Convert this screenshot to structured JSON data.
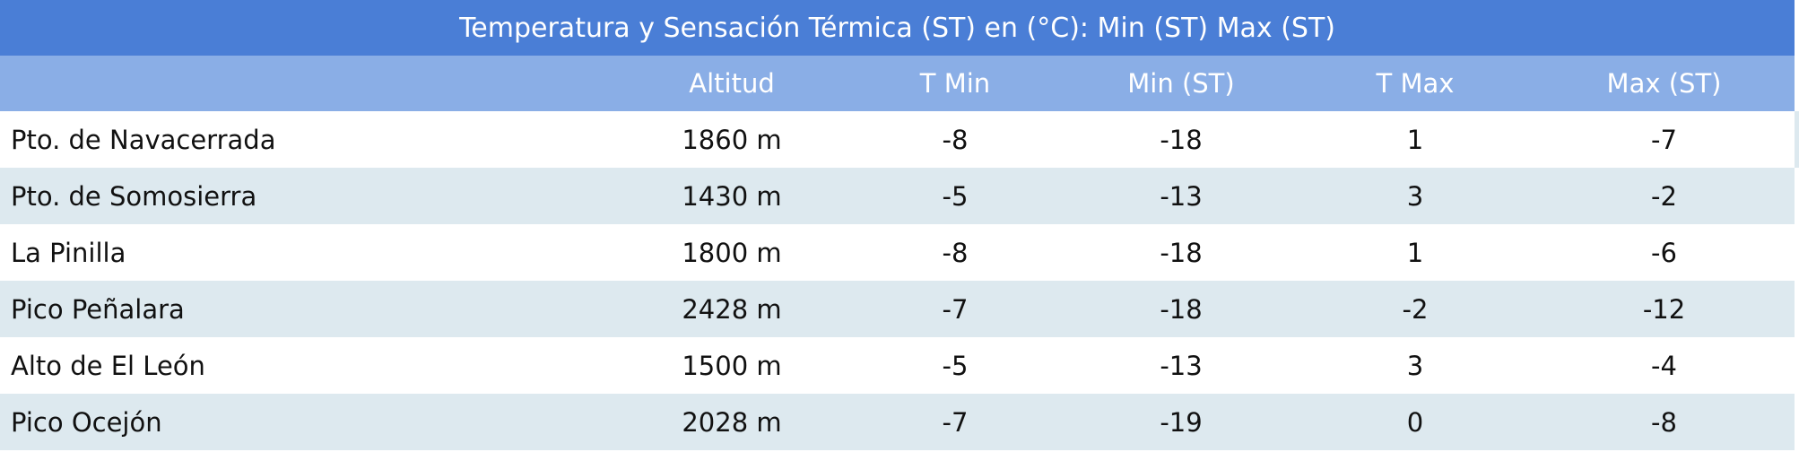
{
  "table": {
    "title": "Temperatura y Sensación Térmica (ST) en (°C): Min (ST) Max (ST)",
    "columns": [
      "Altitud",
      "T Min",
      "Min (ST)",
      "T Max",
      "Max (ST)"
    ],
    "rows": [
      [
        "Pto. de Navacerrada",
        "1860 m",
        -8,
        -18,
        1,
        -7
      ],
      [
        "Pto. de Somosierra",
        "1430 m",
        -5,
        -13,
        3,
        -2
      ],
      [
        "La Pinilla",
        "1800 m",
        -8,
        -18,
        1,
        -6
      ],
      [
        "Pico Peñalara",
        "2428 m",
        -7,
        -18,
        -2,
        -12
      ],
      [
        "Alto de El León",
        "1500 m",
        -5,
        -13,
        3,
        -4
      ],
      [
        "Pico Ocejón",
        "2028 m",
        -7,
        -19,
        0,
        -8
      ]
    ]
  }
}
